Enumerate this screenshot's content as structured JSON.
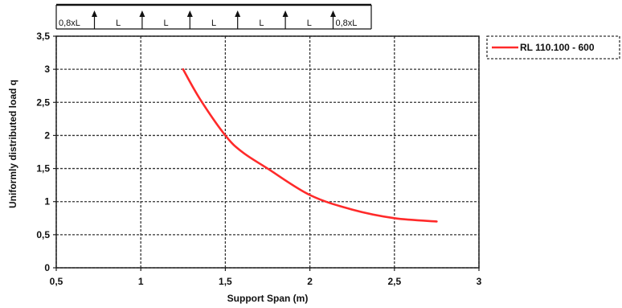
{
  "chart_data": {
    "type": "line",
    "title": "",
    "xlabel": "Support Span (m)",
    "ylabel": "Uniformly distributed load q",
    "xlim": [
      0.5,
      3
    ],
    "ylim": [
      0,
      3.5
    ],
    "x_ticks": [
      "0,5",
      "1",
      "1,5",
      "2",
      "2,5",
      "3"
    ],
    "x_tick_values": [
      0.5,
      1,
      1.5,
      2,
      2.5,
      3
    ],
    "y_ticks": [
      "0",
      "0,5",
      "1",
      "1,5",
      "2",
      "2,5",
      "3",
      "3,5"
    ],
    "y_tick_values": [
      0,
      0.5,
      1,
      1.5,
      2,
      2.5,
      3,
      3.5
    ],
    "grid": true,
    "legend_position": "top-right",
    "series": [
      {
        "name": "RL 110.100 - 600",
        "color": "#ff2a2a",
        "x": [
          1.25,
          1.35,
          1.5,
          1.6,
          1.75,
          2.0,
          2.25,
          2.5,
          2.75
        ],
        "y": [
          3.0,
          2.55,
          2.0,
          1.75,
          1.5,
          1.1,
          0.88,
          0.75,
          0.7
        ]
      }
    ],
    "beam_diagram": {
      "labels": [
        "0,8xL",
        "L",
        "L",
        "L",
        "L",
        "L",
        "0,8xL"
      ]
    }
  }
}
